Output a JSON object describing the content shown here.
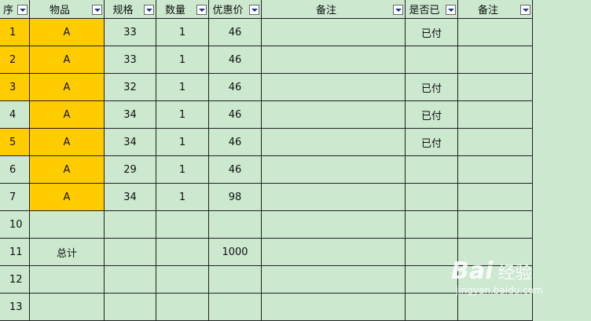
{
  "table": {
    "header": [
      "序",
      "物品",
      "规格",
      "数量",
      "优惠价",
      "备注",
      "是否已",
      "备注"
    ],
    "rows": [
      [
        "1",
        "A",
        "33",
        "1",
        "46",
        null,
        "已付",
        null
      ],
      [
        "2",
        "A",
        "33",
        "1",
        "46",
        null,
        null,
        null
      ],
      [
        "3",
        "A",
        "32",
        "1",
        "46",
        null,
        "已付",
        null
      ],
      [
        "4",
        "A",
        "34",
        "1",
        "46",
        null,
        "已付",
        null
      ],
      [
        "5",
        "A",
        "34",
        "1",
        "46",
        null,
        "已付",
        null
      ],
      [
        "6",
        "A",
        "29",
        "1",
        "46",
        null,
        null,
        null
      ],
      [
        "7",
        "A",
        "34",
        "1",
        "98",
        null,
        null,
        null
      ],
      [
        "10",
        null,
        null,
        null,
        null,
        null,
        null,
        null
      ],
      [
        "11",
        "总计",
        null,
        null,
        "1000",
        null,
        null,
        null
      ],
      [
        "12",
        null,
        null,
        null,
        null,
        null,
        null,
        null
      ],
      [
        "13",
        null,
        null,
        null,
        null,
        null,
        null,
        null
      ]
    ]
  },
  "watermark": {
    "brand": "Bai",
    "product": "经验",
    "url": "jingyan.baidu.com"
  }
}
